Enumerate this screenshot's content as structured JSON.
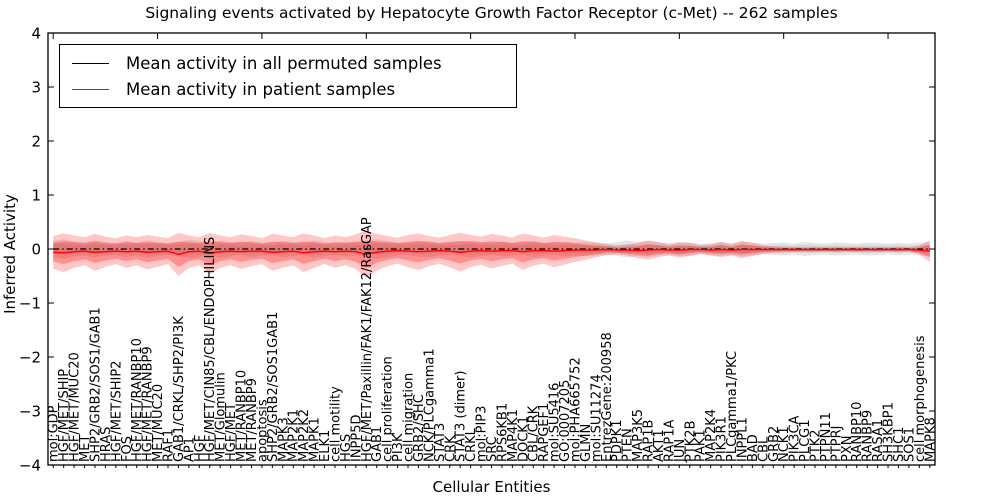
{
  "figure": {
    "title": "Signaling events activated by Hepatocyte Growth Factor Receptor (c-Met) -- 262 samples"
  },
  "axes": {
    "xlabel": "Cellular Entities",
    "ylabel": "Inferred Activity",
    "ylim": [
      -4,
      4
    ],
    "yticks": [
      4,
      3,
      2,
      1,
      0,
      -1,
      -2,
      -3,
      -4
    ]
  },
  "legend": {
    "entries": [
      {
        "label": "Mean activity in all permuted samples",
        "color": "#000000"
      },
      {
        "label": "Mean activity in patient samples",
        "color": "#ff0000"
      }
    ]
  },
  "chart_data": {
    "type": "line",
    "title": "Signaling events activated by Hepatocyte Growth Factor Receptor (c-Met) -- 262 samples",
    "xlabel": "Cellular Entities",
    "ylabel": "Inferred Activity",
    "ylim": [
      -4,
      4
    ],
    "yticks": [
      4,
      3,
      2,
      1,
      0,
      -1,
      -2,
      -3,
      -4
    ],
    "legend_position": "upper-left",
    "grid": false,
    "categories": [
      "mol:GDP",
      "HGF/MET/SHIP",
      "HGF/MET/MUC20",
      "MET",
      "SHP2/GRB2/SOS1/GAB1",
      "HRAS",
      "HGF/MET/SHIP2",
      "FOS",
      "HGF/MET/RANBP10",
      "HGF/MET/RANBP9",
      "MET/MUC20",
      "RAF1",
      "GAB1/CRKL/SHP2/PI3K",
      "AP1",
      "HGF",
      "HGF/MET/CIN85/CBL/ENDOPHILINS",
      "MET/Glomulin",
      "HGF/MET",
      "MET/RANBP10",
      "MET/RANBP9",
      "apoptosis",
      "SHP2/GRB2/SOS1GAB1",
      "MAPK3",
      "MAP2K1",
      "MAP2K2",
      "MAPK1",
      "ELK1",
      "cell motility",
      "HGS",
      "INPP5D",
      "HGF/MET/Paxillin/FAK1/FAK12/RasGAP",
      "GAB1",
      "cell proliferation",
      "PI3K",
      "cell migration",
      "GRB2/SHC",
      "NCK/PLCgamma1",
      "STAT3",
      "CRK",
      "STAT3 (dimer)",
      "CRKL",
      "mol:PIP3",
      "SRC",
      "RPS6KB1",
      "MAP4K1",
      "DOCK1",
      "CBL/CRK",
      "RAPGEF1",
      "mol:SU5416",
      "GO:0007205",
      "mol:PHA665752",
      "GLMN",
      "mol:SU11274",
      "EntrezGene:200958",
      "PDPK1",
      "PTEN",
      "MAP3K5",
      "RAP1B",
      "AKT1",
      "RAP1A",
      "JUN",
      "PTK2B",
      "PAK1",
      "MAP2K4",
      "PIK3R1",
      "PLCgamma1/PKC",
      "INPPL1",
      "BAD",
      "CBL",
      "GRB2",
      "NCK1",
      "PIK3CA",
      "PLCG1",
      "PTK2",
      "PTPN11",
      "PTPRJ",
      "PXN",
      "RANBP10",
      "RANBP9",
      "RASA1",
      "SH3KBP1",
      "SHC1",
      "SOS1",
      "cell morphogenesis",
      "MAPK8"
    ],
    "series": [
      {
        "name": "Mean activity in all permuted samples",
        "color": "#000000",
        "linestyle": "dashdot",
        "values": [
          0,
          0,
          0,
          0,
          0,
          0,
          0,
          0,
          0,
          0,
          0,
          0,
          0,
          0,
          0,
          0,
          0,
          0,
          0,
          0,
          0,
          0,
          0,
          0,
          0,
          0,
          0,
          0,
          0,
          0,
          0,
          0,
          0,
          0,
          0,
          0,
          0,
          0,
          0,
          0,
          0,
          0,
          0,
          0,
          0,
          0,
          0,
          0,
          0,
          0,
          0,
          0,
          0,
          0,
          0,
          0,
          0,
          0,
          0,
          0,
          0,
          0,
          0,
          0,
          0,
          0,
          0,
          0,
          0,
          0,
          0,
          0,
          0,
          0,
          0,
          0,
          0,
          0,
          0,
          0,
          0,
          0,
          0,
          0,
          0
        ]
      },
      {
        "name": "Mean activity in patient samples",
        "color": "#ff0000",
        "linestyle": "solid",
        "values": [
          -0.06,
          -0.07,
          -0.05,
          -0.04,
          -0.06,
          -0.05,
          -0.04,
          -0.05,
          -0.04,
          -0.06,
          -0.05,
          -0.04,
          -0.1,
          -0.05,
          -0.04,
          -0.08,
          -0.05,
          -0.04,
          -0.05,
          -0.04,
          -0.04,
          -0.06,
          -0.05,
          -0.04,
          -0.07,
          -0.05,
          -0.04,
          -0.05,
          -0.04,
          -0.05,
          -0.1,
          -0.06,
          -0.04,
          -0.03,
          -0.04,
          -0.05,
          -0.04,
          -0.03,
          -0.04,
          -0.06,
          -0.04,
          -0.03,
          -0.04,
          -0.03,
          -0.03,
          -0.05,
          -0.03,
          -0.03,
          -0.04,
          -0.03,
          -0.02,
          -0.02,
          -0.02,
          -0.01,
          -0.02,
          -0.02,
          -0.03,
          -0.02,
          -0.01,
          -0.02,
          -0.02,
          -0.01,
          -0.01,
          -0.02,
          -0.01,
          -0.02,
          -0.01,
          -0.01,
          -0.01,
          -0.01,
          -0.01,
          -0.01,
          -0.01,
          -0.01,
          -0.01,
          -0.01,
          -0.01,
          -0.01,
          -0.01,
          -0.01,
          -0.01,
          -0.01,
          -0.01,
          -0.02,
          -0.04
        ]
      }
    ],
    "bands": [
      {
        "name": "permuted-std-band",
        "series_index": 0,
        "color": "rgba(0,0,0,0.10)",
        "inner_color": "rgba(0,0,0,0.08)",
        "half_widths": [
          0.15,
          0.18,
          0.14,
          0.12,
          0.16,
          0.13,
          0.11,
          0.15,
          0.12,
          0.16,
          0.13,
          0.11,
          0.14,
          0.17,
          0.15,
          0.12,
          0.16,
          0.13,
          0.11,
          0.15,
          0.12,
          0.11,
          0.15,
          0.13,
          0.11,
          0.16,
          0.13,
          0.11,
          0.14,
          0.12,
          0.15,
          0.18,
          0.15,
          0.12,
          0.11,
          0.14,
          0.15,
          0.12,
          0.11,
          0.13,
          0.16,
          0.13,
          0.11,
          0.14,
          0.12,
          0.11,
          0.15,
          0.12,
          0.11,
          0.14,
          0.12,
          0.13,
          0.12,
          0.11,
          0.12,
          0.16,
          0.13,
          0.15,
          0.12,
          0.11,
          0.13,
          0.12,
          0.1,
          0.11,
          0.13,
          0.11,
          0.14,
          0.12,
          0.1,
          0.11,
          0.12,
          0.1,
          0.13,
          0.11,
          0.1,
          0.12,
          0.11,
          0.1,
          0.12,
          0.11,
          0.1,
          0.11,
          0.1,
          0.12,
          0.13
        ]
      },
      {
        "name": "patient-std-band",
        "series_index": 1,
        "color": "rgba(255,0,0,0.22)",
        "inner_color": "rgba(255,0,0,0.28)",
        "half_widths": [
          0.3,
          0.36,
          0.3,
          0.26,
          0.34,
          0.28,
          0.24,
          0.3,
          0.26,
          0.32,
          0.28,
          0.24,
          0.4,
          0.3,
          0.26,
          0.38,
          0.3,
          0.26,
          0.32,
          0.28,
          0.24,
          0.34,
          0.3,
          0.26,
          0.36,
          0.3,
          0.24,
          0.3,
          0.26,
          0.32,
          0.44,
          0.34,
          0.28,
          0.24,
          0.3,
          0.34,
          0.28,
          0.24,
          0.3,
          0.36,
          0.3,
          0.26,
          0.32,
          0.28,
          0.24,
          0.34,
          0.28,
          0.24,
          0.3,
          0.26,
          0.22,
          0.18,
          0.14,
          0.1,
          0.08,
          0.1,
          0.14,
          0.18,
          0.14,
          0.1,
          0.14,
          0.12,
          0.08,
          0.1,
          0.14,
          0.1,
          0.16,
          0.12,
          0.08,
          0.06,
          0.05,
          0.05,
          0.04,
          0.05,
          0.04,
          0.05,
          0.04,
          0.05,
          0.04,
          0.05,
          0.04,
          0.05,
          0.04,
          0.08,
          0.2
        ]
      }
    ]
  }
}
